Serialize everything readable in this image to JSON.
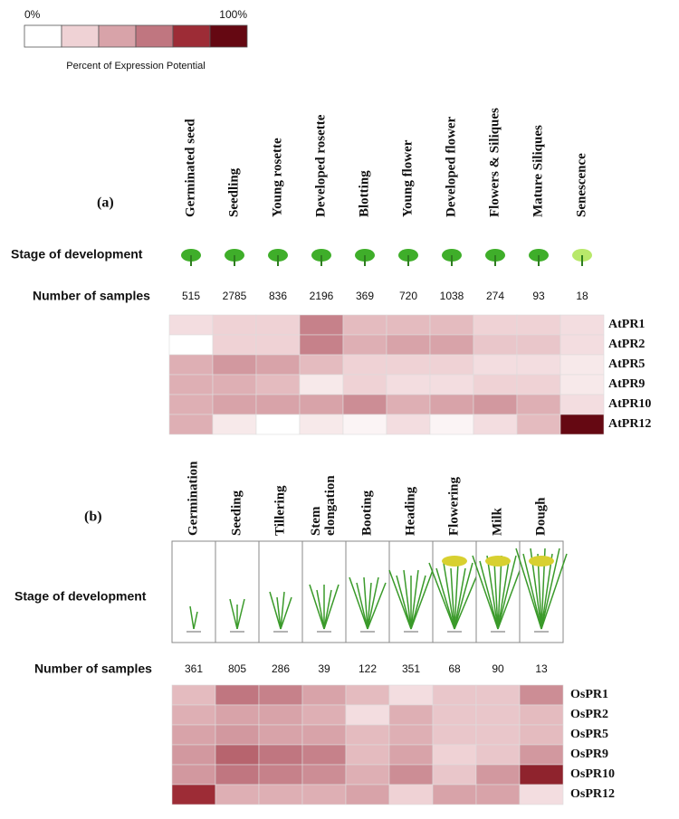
{
  "legend": {
    "title": "Percent of Expression Potential",
    "ticks": [
      {
        "value": 0,
        "label": "0%"
      },
      {
        "value": 100,
        "label": "100%"
      }
    ],
    "colors": [
      "#ffffff",
      "#efd2d5",
      "#d8a3a9",
      "#c07680",
      "#9d2c36",
      "#650812"
    ]
  },
  "chart_data": [
    {
      "type": "heatmap",
      "label": "(a)",
      "stage_label": "Stage of development",
      "samples_label": "Number of samples",
      "columns": [
        "Germinated seed",
        "Seedling",
        "Young rosette",
        "Developed rosette",
        "Blotting",
        "Young flower",
        "Developed flower",
        "Flowers & Siliques",
        "Mature Siliques",
        "Senescence"
      ],
      "samples": [
        515,
        2785,
        836,
        2196,
        369,
        720,
        1038,
        274,
        93,
        18
      ],
      "rows": [
        "AtPR1",
        "AtPR2",
        "AtPR5",
        "AtPR9",
        "AtPR10",
        "AtPR12"
      ],
      "values": [
        [
          15,
          20,
          20,
          55,
          30,
          30,
          30,
          20,
          20,
          15
        ],
        [
          0,
          20,
          20,
          55,
          35,
          40,
          40,
          25,
          25,
          15
        ],
        [
          35,
          45,
          40,
          30,
          20,
          20,
          20,
          15,
          15,
          10
        ],
        [
          35,
          35,
          30,
          10,
          20,
          15,
          15,
          20,
          20,
          10
        ],
        [
          35,
          40,
          40,
          40,
          50,
          35,
          40,
          45,
          35,
          15
        ],
        [
          35,
          10,
          0,
          10,
          5,
          15,
          5,
          15,
          30,
          100
        ]
      ]
    },
    {
      "type": "heatmap",
      "label": "(b)",
      "stage_label": "Stage of development",
      "samples_label": "Number of samples",
      "columns": [
        "Germination",
        "Seeding",
        "Tillering",
        "Stem elongation",
        "Booting",
        "Heading",
        "Flowering",
        "Milk",
        "Dough"
      ],
      "samples": [
        361,
        805,
        286,
        39,
        122,
        351,
        68,
        90,
        13
      ],
      "rows": [
        "OsPR1",
        "OsPR2",
        "OsPR5",
        "OsPR9",
        "OsPR10",
        "OsPR12"
      ],
      "values": [
        [
          30,
          60,
          55,
          40,
          30,
          15,
          25,
          25,
          50
        ],
        [
          35,
          40,
          40,
          35,
          15,
          35,
          25,
          25,
          30
        ],
        [
          40,
          45,
          40,
          40,
          30,
          35,
          25,
          25,
          30
        ],
        [
          45,
          65,
          60,
          55,
          30,
          40,
          20,
          25,
          45
        ],
        [
          45,
          60,
          55,
          50,
          35,
          50,
          25,
          45,
          85
        ],
        [
          80,
          35,
          35,
          35,
          40,
          20,
          40,
          40,
          15
        ]
      ]
    }
  ]
}
